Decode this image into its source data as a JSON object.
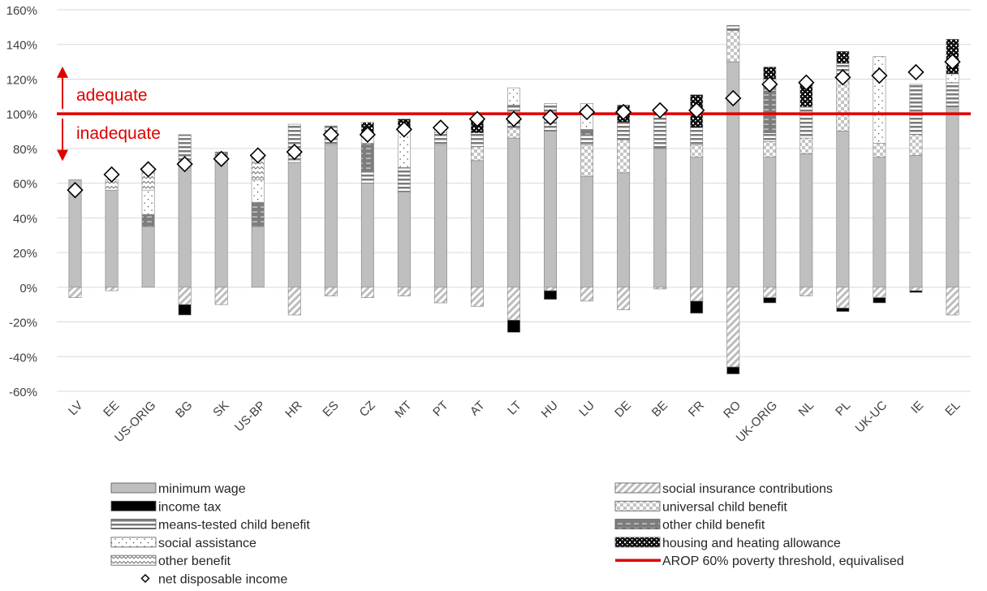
{
  "chart_data": {
    "type": "bar",
    "stacked": true,
    "categories": [
      "LV",
      "EE",
      "US-ORIG",
      "BG",
      "SK",
      "US-BP",
      "HR",
      "ES",
      "CZ",
      "MT",
      "PT",
      "AT",
      "LT",
      "HU",
      "LU",
      "DE",
      "BE",
      "FR",
      "RO",
      "UK-ORIG",
      "NL",
      "PL",
      "UK-UC",
      "IE",
      "EL"
    ],
    "ylim": [
      -0.6,
      1.6
    ],
    "y_ticks": [
      "-60%",
      "-40%",
      "-20%",
      "0%",
      "20%",
      "40%",
      "60%",
      "80%",
      "100%",
      "120%",
      "140%",
      "160%"
    ],
    "grid": true,
    "legend_position": "bottom",
    "series": [
      {
        "name": "minimum wage",
        "pattern": "solid-gray",
        "values": [
          0.62,
          0.56,
          0.35,
          0.7,
          0.74,
          0.35,
          0.72,
          0.82,
          0.6,
          0.55,
          0.82,
          0.73,
          0.86,
          0.9,
          0.64,
          0.66,
          0.8,
          0.75,
          1.3,
          0.75,
          0.77,
          0.9,
          0.75,
          0.76,
          1.03
        ]
      },
      {
        "name": "social insurance contributions",
        "pattern": "diagonal",
        "values": [
          -0.06,
          -0.02,
          0,
          -0.1,
          -0.1,
          0,
          -0.16,
          -0.05,
          -0.06,
          -0.05,
          -0.09,
          -0.11,
          -0.19,
          -0.02,
          -0.08,
          -0.13,
          -0.01,
          -0.08,
          -0.46,
          -0.06,
          -0.05,
          -0.12,
          -0.06,
          -0.02,
          -0.16
        ]
      },
      {
        "name": "income tax",
        "pattern": "black",
        "values": [
          0,
          0,
          0,
          -0.06,
          0,
          0,
          0,
          0,
          0,
          0,
          0,
          0,
          -0.07,
          -0.05,
          0,
          0,
          0,
          -0.07,
          -0.04,
          -0.03,
          0,
          -0.02,
          -0.03,
          -0.01,
          0
        ]
      },
      {
        "name": "universal child benefit",
        "pattern": "checker",
        "values": [
          0,
          0,
          0,
          0,
          0,
          0,
          0,
          0,
          0,
          0,
          0,
          0.08,
          0.06,
          0,
          0.18,
          0.19,
          0,
          0.07,
          0.18,
          0.09,
          0.09,
          0.3,
          0.08,
          0.12,
          0
        ]
      },
      {
        "name": "means-tested child benefit",
        "pattern": "hstripe",
        "values": [
          0,
          0,
          0,
          0.18,
          0.02,
          0,
          0.22,
          0.11,
          0.07,
          0.14,
          0.07,
          0.08,
          0.13,
          0.16,
          0.06,
          0.1,
          0.22,
          0.1,
          0.03,
          0.05,
          0.18,
          0.09,
          0,
          0.29,
          0.15
        ]
      },
      {
        "name": "other child benefit",
        "pattern": "dash-dark",
        "values": [
          0,
          0,
          0.07,
          0,
          0.02,
          0.14,
          0,
          0,
          0.16,
          0,
          0,
          0,
          0,
          0,
          0.03,
          0,
          0,
          0,
          0,
          0.27,
          0,
          0,
          0,
          0,
          0
        ]
      },
      {
        "name": "social assistance",
        "pattern": "dots",
        "values": [
          0,
          0,
          0.14,
          0,
          0,
          0.13,
          0,
          0,
          0.05,
          0.23,
          0.03,
          0,
          0.1,
          0,
          0.15,
          0,
          0,
          0,
          0,
          0.04,
          0,
          0,
          0.5,
          0,
          0.05
        ]
      },
      {
        "name": "housing and heating allowance",
        "pattern": "bricks",
        "values": [
          0,
          0,
          0,
          0,
          0,
          0,
          0,
          0,
          0.07,
          0.05,
          0,
          0.08,
          0,
          0,
          0,
          0.1,
          0,
          0.19,
          0,
          0.07,
          0.15,
          0.07,
          0,
          0,
          0.2
        ]
      },
      {
        "name": "other benefit",
        "pattern": "wave",
        "values": [
          0,
          0.06,
          0.13,
          0,
          0,
          0.14,
          0,
          0,
          0,
          0,
          0,
          0,
          0,
          0,
          0,
          0,
          0,
          0,
          0,
          0,
          0,
          0,
          0,
          0,
          0
        ]
      },
      {
        "name": "net disposable income",
        "type": "marker",
        "values": [
          0.56,
          0.65,
          0.68,
          0.71,
          0.74,
          0.76,
          0.78,
          0.88,
          0.88,
          0.91,
          0.92,
          0.97,
          0.97,
          0.98,
          1.01,
          1.01,
          1.02,
          1.02,
          1.09,
          1.17,
          1.18,
          1.21,
          1.22,
          1.24,
          1.3
        ]
      }
    ],
    "reference_line": {
      "name": "AROP 60% poverty threshold, equivalised",
      "value": 1.0,
      "color": "#e00000"
    },
    "annotations": {
      "above": "adequate",
      "below": "inadequate",
      "color": "#e00000"
    },
    "legend": {
      "left": [
        "minimum wage",
        "income tax",
        "means-tested child benefit",
        "social assistance",
        "other benefit",
        "net disposable income"
      ],
      "right": [
        "social insurance contributions",
        "universal child benefit",
        "other child benefit",
        "housing and heating allowance",
        "AROP 60% poverty threshold, equivalised"
      ]
    }
  }
}
